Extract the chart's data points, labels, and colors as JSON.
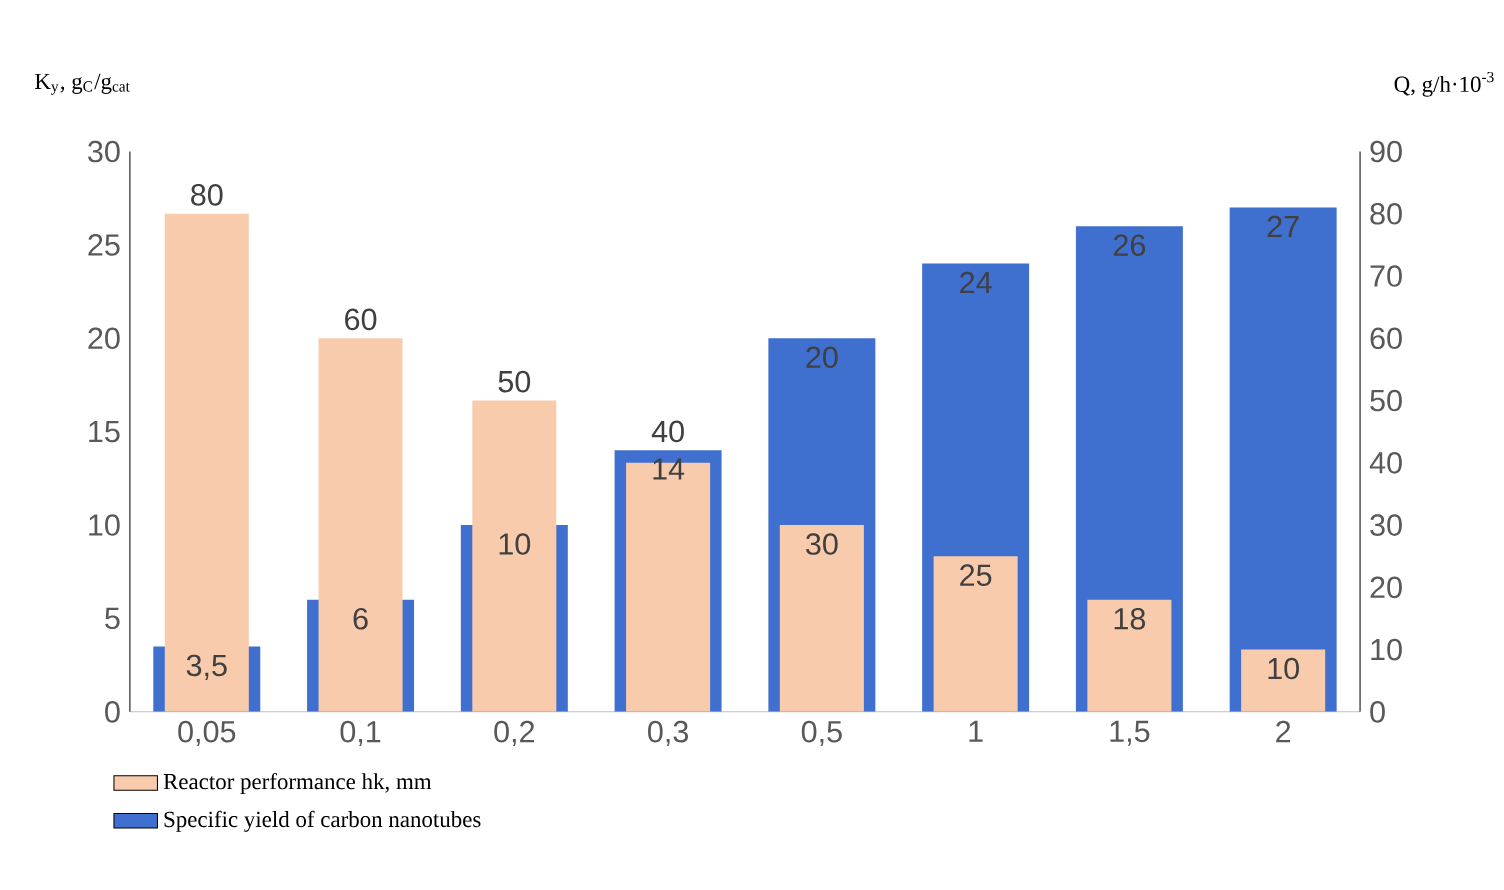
{
  "chart_data": {
    "type": "bar",
    "ylabel": "K$_{y}$, g$_{C}$/g$_{cat}$",
    "y2label": "Q, g/h·10$^{-3}$",
    "categories": [
      "0,05",
      "0,1",
      "0,2",
      "0,3",
      "0,5",
      "1",
      "1,5",
      "2"
    ],
    "series": [
      {
        "name": "Reactor performance  hk, mm",
        "color": "#f8cbad",
        "axis": "y2",
        "values": [
          80,
          60,
          50,
          40,
          30,
          25,
          18,
          10
        ],
        "value_labels": [
          "80",
          "60",
          "50",
          "40",
          "30",
          "25",
          "18",
          "10"
        ]
      },
      {
        "name": "Specific yield of carbon nanotubes",
        "color": "#3f6fcf",
        "axis": "y",
        "values": [
          3.5,
          6,
          10,
          14,
          20,
          24,
          26,
          27
        ],
        "value_labels": [
          "3,5",
          "6",
          "10",
          "14",
          "20",
          "24",
          "26",
          "27"
        ]
      }
    ],
    "ylim": [
      0,
      30
    ],
    "yticks": [
      0,
      5,
      10,
      15,
      20,
      25,
      30
    ],
    "y2lim": [
      0,
      90
    ],
    "y2ticks": [
      0,
      10,
      20,
      30,
      40,
      50,
      60,
      70,
      80,
      90
    ],
    "legend": "bottom left",
    "grid": false
  }
}
